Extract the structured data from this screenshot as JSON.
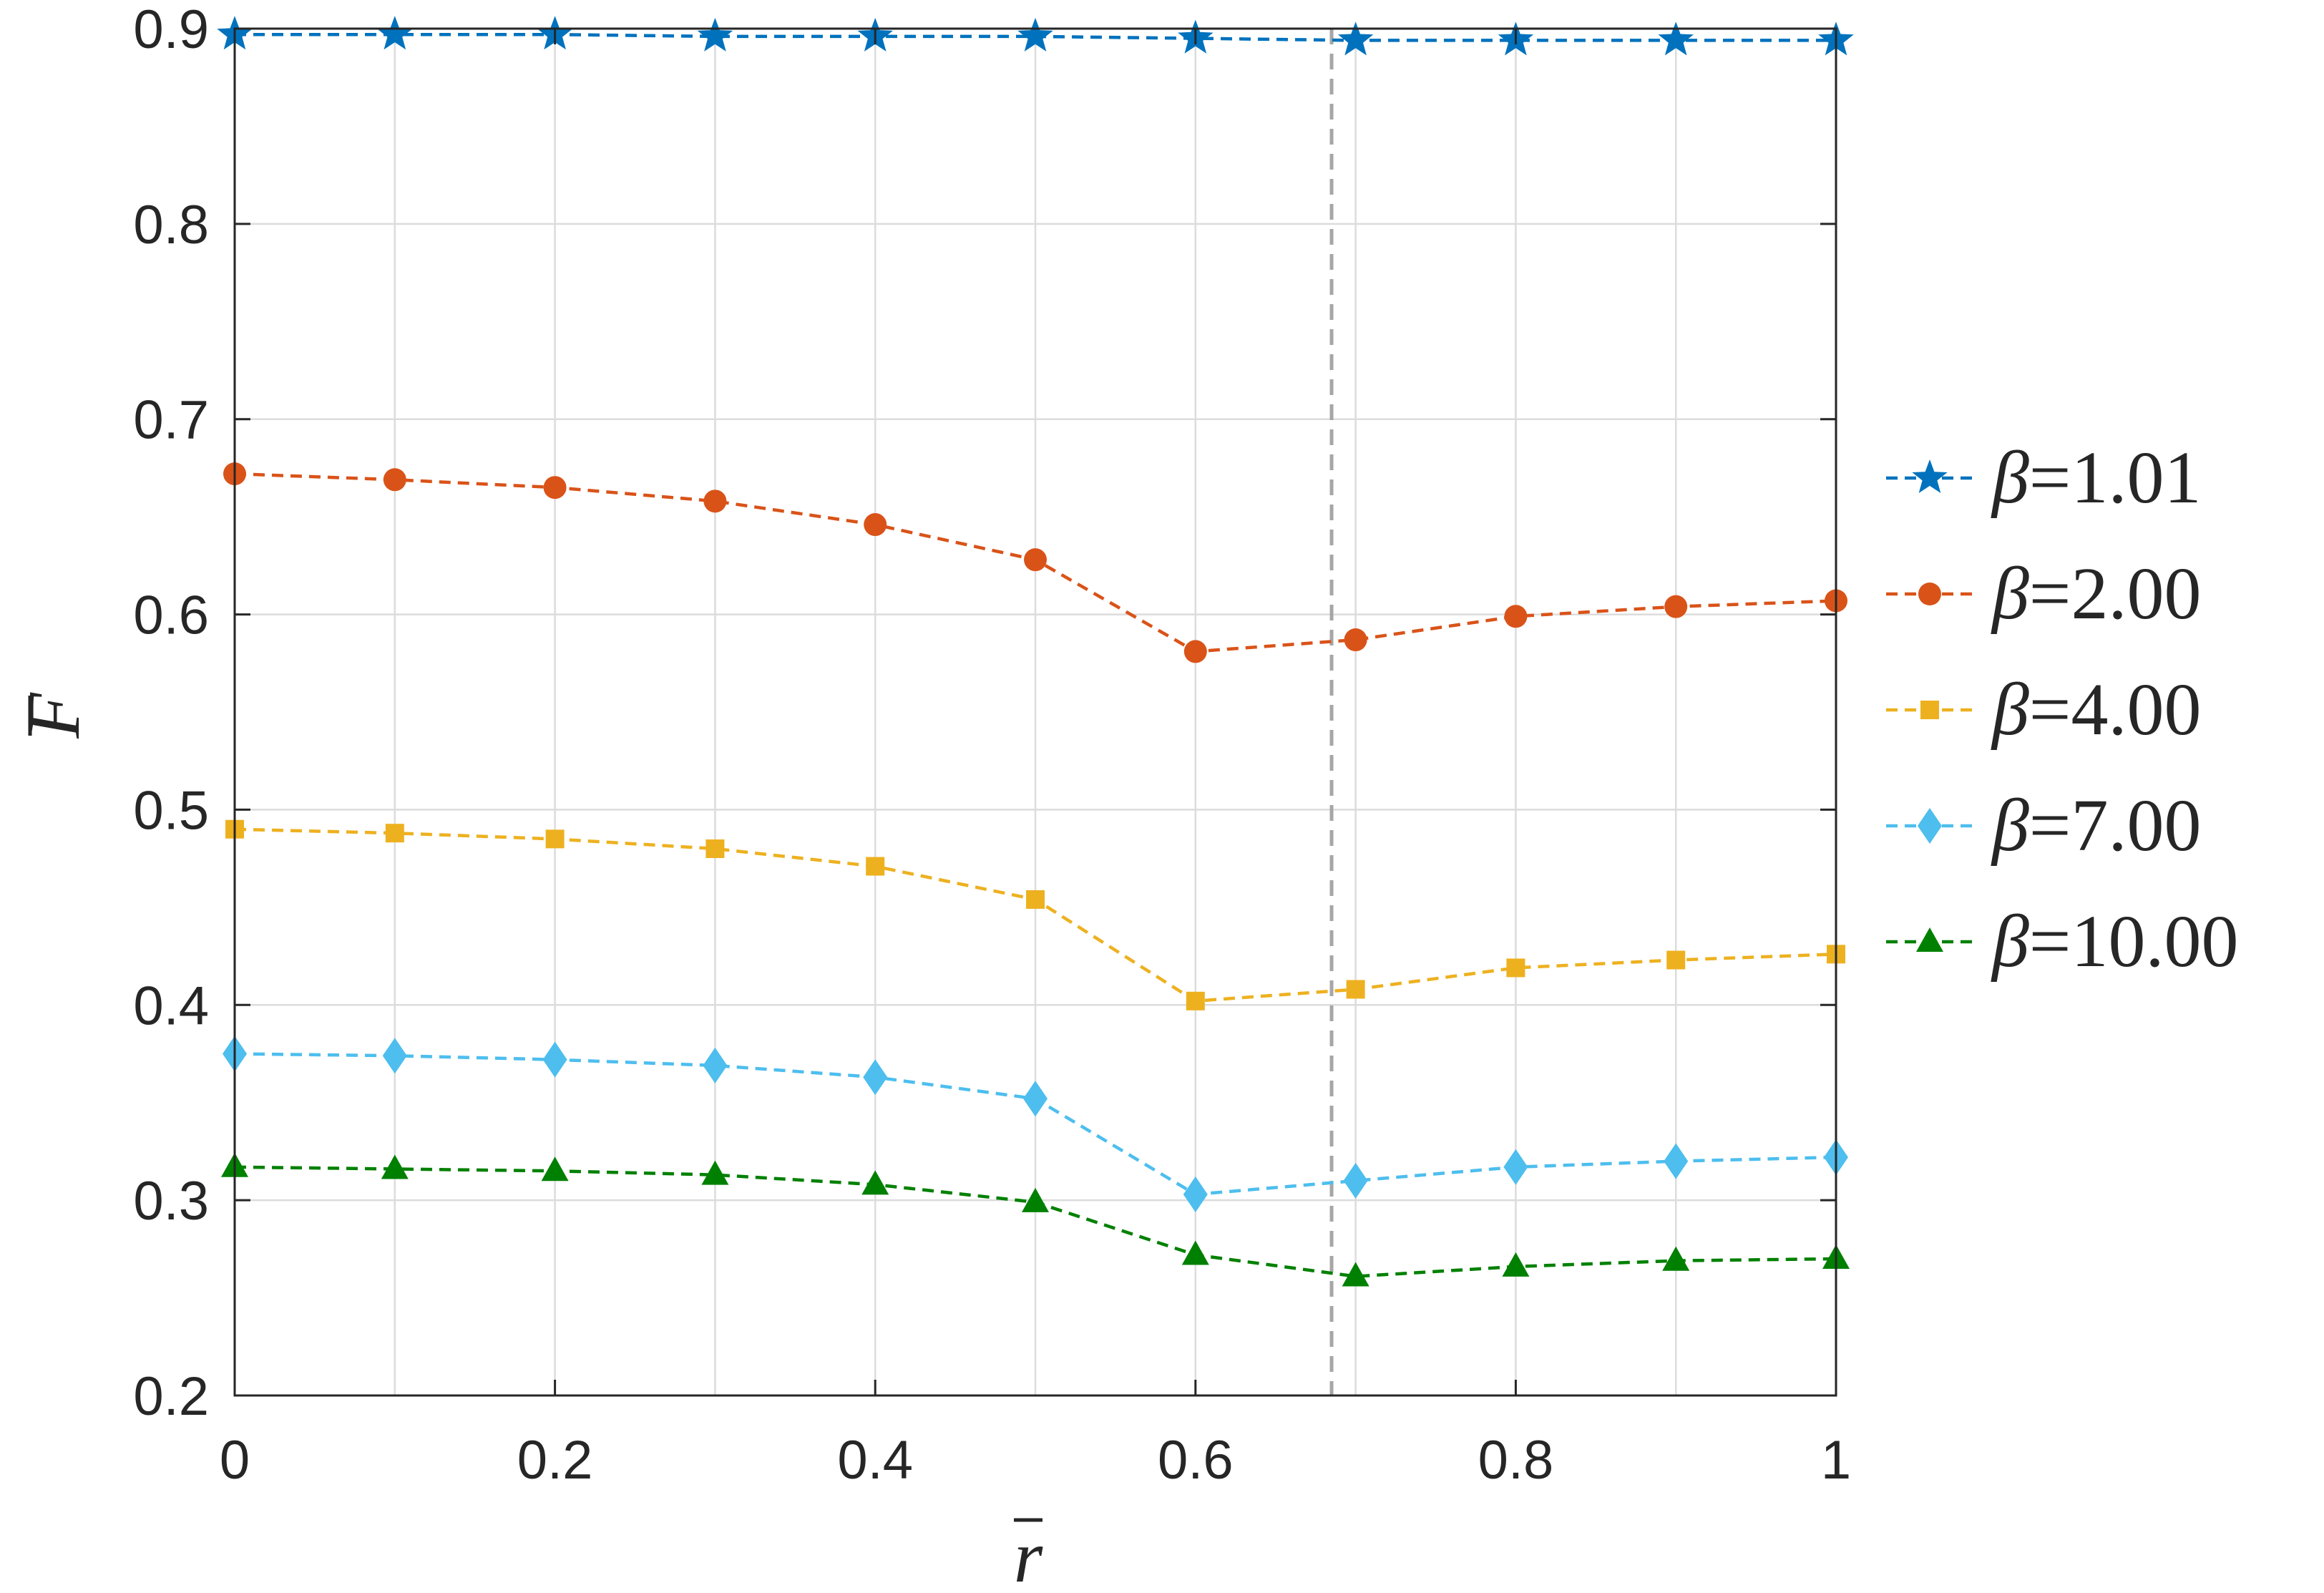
{
  "chart_data": {
    "type": "line",
    "xlabel": "r",
    "ylabel": "F",
    "xlim": [
      0,
      1
    ],
    "ylim": [
      0.2,
      0.9
    ],
    "xticks": [
      "0",
      "0.2",
      "0.4",
      "0.6",
      "0.8",
      "1"
    ],
    "yticks": [
      "0.2",
      "0.3",
      "0.4",
      "0.5",
      "0.6",
      "0.7",
      "0.8",
      "0.9"
    ],
    "grid": true,
    "legend_position": "right",
    "reference_line_x": 0.685,
    "x": [
      0,
      0.1,
      0.2,
      0.3,
      0.4,
      0.5,
      0.6,
      0.7,
      0.8,
      0.9,
      1.0
    ],
    "series": [
      {
        "name": "β=1.01",
        "beta_symbol": "β",
        "beta_value": "=1.01",
        "color": "#0072BD",
        "marker": "star",
        "values": [
          0.897,
          0.897,
          0.897,
          0.896,
          0.896,
          0.896,
          0.895,
          0.894,
          0.894,
          0.894,
          0.894
        ]
      },
      {
        "name": "β=2.00",
        "beta_symbol": "β",
        "beta_value": "=2.00",
        "color": "#D95319",
        "marker": "circle",
        "values": [
          0.672,
          0.669,
          0.665,
          0.658,
          0.646,
          0.628,
          0.581,
          0.587,
          0.599,
          0.604,
          0.607
        ]
      },
      {
        "name": "β=4.00",
        "beta_symbol": "β",
        "beta_value": "=4.00",
        "color": "#EDB120",
        "marker": "square",
        "values": [
          0.49,
          0.488,
          0.485,
          0.48,
          0.471,
          0.454,
          0.402,
          0.408,
          0.419,
          0.423,
          0.426
        ]
      },
      {
        "name": "β=7.00",
        "beta_symbol": "β",
        "beta_value": "=7.00",
        "color": "#4DBEEE",
        "marker": "diamond",
        "values": [
          0.375,
          0.374,
          0.372,
          0.369,
          0.363,
          0.352,
          0.303,
          0.31,
          0.317,
          0.32,
          0.322
        ]
      },
      {
        "name": "β=10.00",
        "beta_symbol": "β",
        "beta_value": "=10.00",
        "color": "#008000",
        "marker": "triangle",
        "values": [
          0.317,
          0.316,
          0.315,
          0.313,
          0.308,
          0.299,
          0.272,
          0.261,
          0.266,
          0.269,
          0.27
        ]
      }
    ]
  }
}
